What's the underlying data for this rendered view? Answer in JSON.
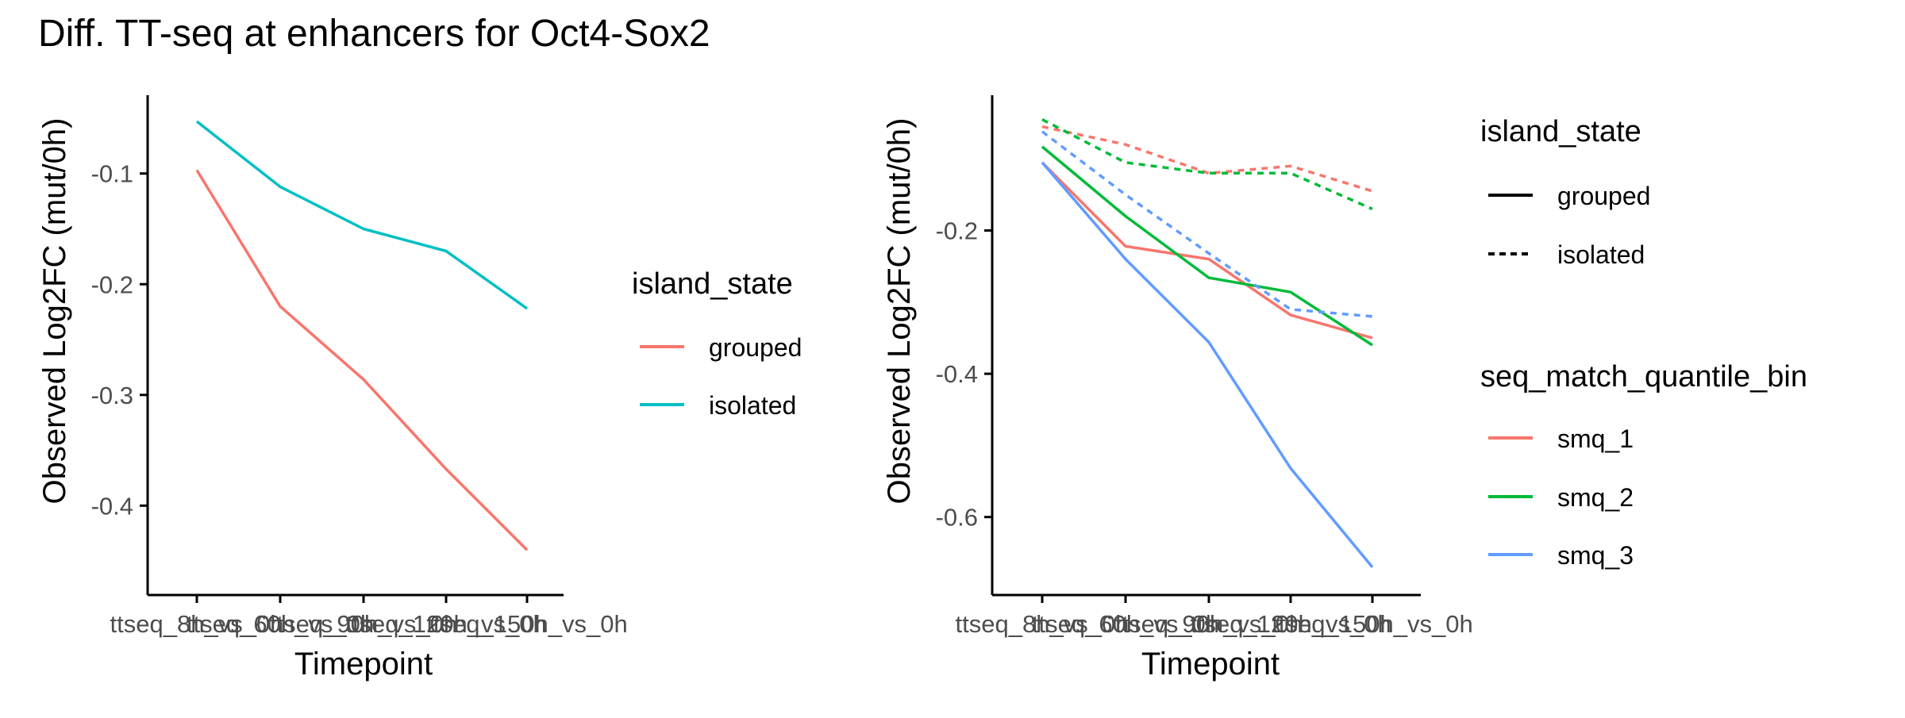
{
  "title": "Diff. TT-seq at enhancers for Oct4-Sox2",
  "colors": {
    "grouped": "#F8766D",
    "isolated": "#00BFC4",
    "smq_1": "#F8766D",
    "smq_2": "#00BA38",
    "smq_3": "#619CFF",
    "axis": "#000000",
    "tick_label": "#4D4D4D"
  },
  "chart_data": [
    {
      "type": "line",
      "xlabel": "Timepoint",
      "ylabel": "Observed Log2FC (mut/0h)",
      "categories": [
        "ttseq_8h_vs_0h",
        "ttseq_60h_vs_0h",
        "ttseq_90h_vs_0h",
        "ttseq_120h_vs_0h",
        "ttseq_150h_vs_0h"
      ],
      "ylim": [
        -0.475,
        -0.035
      ],
      "yticks": [
        -0.4,
        -0.3,
        -0.2,
        -0.1
      ],
      "ytick_labels": [
        "-0.4",
        "-0.3",
        "-0.2",
        "-0.1"
      ],
      "grid": false,
      "legend": {
        "position": "right",
        "title": "island_state",
        "entries": [
          {
            "label": "grouped",
            "color": "#F8766D",
            "linetype": "solid"
          },
          {
            "label": "isolated",
            "color": "#00BFC4",
            "linetype": "solid"
          }
        ]
      },
      "series": [
        {
          "name": "grouped",
          "color": "#F8766D",
          "linetype": "solid",
          "values": [
            -0.097,
            -0.22,
            -0.286,
            -0.367,
            -0.44
          ]
        },
        {
          "name": "isolated",
          "color": "#00BFC4",
          "linetype": "solid",
          "values": [
            -0.053,
            -0.112,
            -0.15,
            -0.17,
            -0.222
          ]
        }
      ]
    },
    {
      "type": "line",
      "xlabel": "Timepoint",
      "ylabel": "Observed Log2FC (mut/0h)",
      "categories": [
        "ttseq_8h_vs_0h",
        "ttseq_60h_vs_0h",
        "ttseq_90h_vs_0h",
        "ttseq_120h_vs_0h",
        "ttseq_150h_vs_0h"
      ],
      "ylim": [
        -0.7,
        -0.02
      ],
      "yticks": [
        -0.6,
        -0.4,
        -0.2
      ],
      "ytick_labels": [
        "-0.6",
        "-0.4",
        "-0.2"
      ],
      "grid": false,
      "legends": [
        {
          "position": "right",
          "title": "island_state",
          "entries": [
            {
              "label": "grouped",
              "color": "#000000",
              "linetype": "solid"
            },
            {
              "label": "isolated",
              "color": "#000000",
              "linetype": "dashed"
            }
          ]
        },
        {
          "position": "right",
          "title": "seq_match_quantile_bin",
          "entries": [
            {
              "label": "smq_1",
              "color": "#F8766D",
              "linetype": "solid"
            },
            {
              "label": "smq_2",
              "color": "#00BA38",
              "linetype": "solid"
            },
            {
              "label": "smq_3",
              "color": "#619CFF",
              "linetype": "solid"
            }
          ]
        }
      ],
      "series": [
        {
          "name": "smq_1 / grouped",
          "color": "#F8766D",
          "linetype": "solid",
          "values": [
            -0.105,
            -0.222,
            -0.24,
            -0.318,
            -0.35
          ]
        },
        {
          "name": "smq_2 / grouped",
          "color": "#00BA38",
          "linetype": "solid",
          "values": [
            -0.083,
            -0.18,
            -0.266,
            -0.286,
            -0.36
          ]
        },
        {
          "name": "smq_3 / grouped",
          "color": "#619CFF",
          "linetype": "solid",
          "values": [
            -0.105,
            -0.24,
            -0.356,
            -0.532,
            -0.67
          ]
        },
        {
          "name": "smq_1 / isolated",
          "color": "#F8766D",
          "linetype": "dashed",
          "values": [
            -0.055,
            -0.08,
            -0.12,
            -0.11,
            -0.145
          ]
        },
        {
          "name": "smq_2 / isolated",
          "color": "#00BA38",
          "linetype": "dashed",
          "values": [
            -0.045,
            -0.105,
            -0.12,
            -0.12,
            -0.17
          ]
        },
        {
          "name": "smq_3 / isolated",
          "color": "#619CFF",
          "linetype": "dashed",
          "values": [
            -0.062,
            -0.15,
            -0.232,
            -0.31,
            -0.32
          ]
        }
      ]
    }
  ]
}
